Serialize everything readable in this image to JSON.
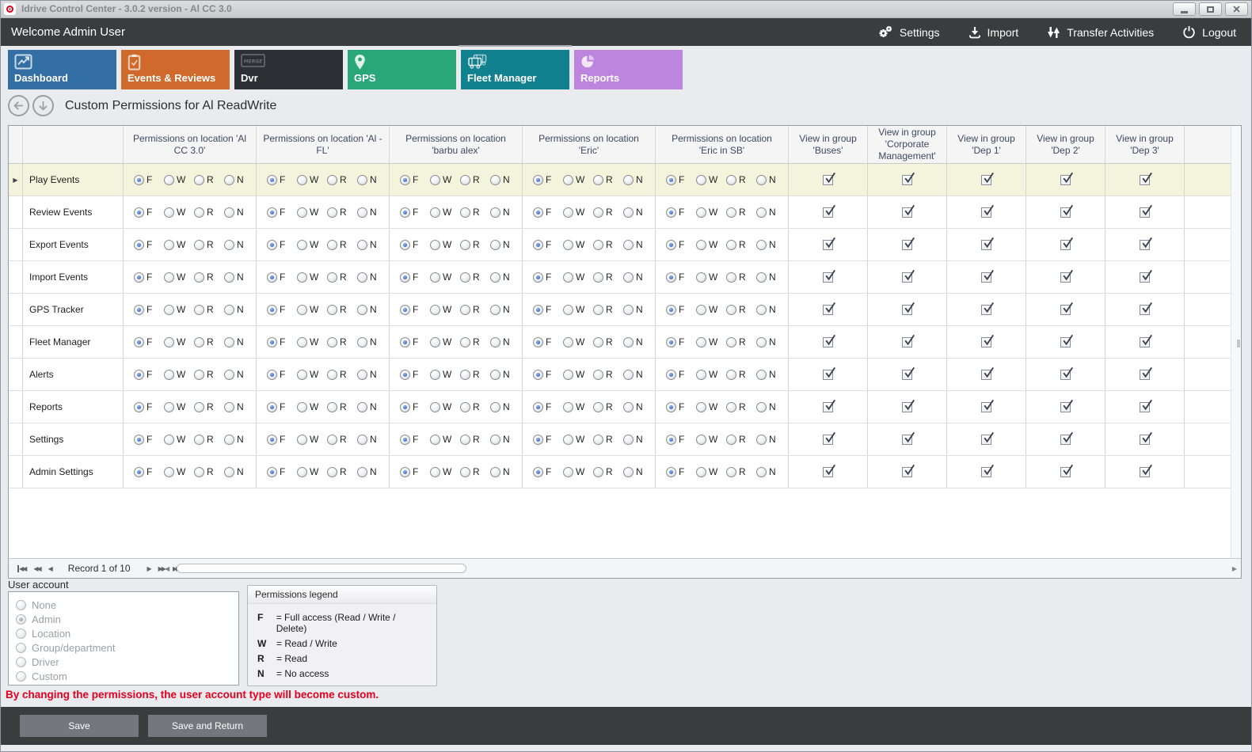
{
  "window": {
    "title": "Idrive Control Center - 3.0.2 version - Al CC 3.0"
  },
  "topbar": {
    "welcome": "Welcome Admin User",
    "actions": [
      {
        "label": "Settings",
        "icon": "gears-icon"
      },
      {
        "label": "Import",
        "icon": "import-icon"
      },
      {
        "label": "Transfer Activities",
        "icon": "transfer-icon"
      },
      {
        "label": "Logout",
        "icon": "power-icon"
      }
    ]
  },
  "tabs": [
    {
      "label": "Dashboard",
      "color": "#336fa4",
      "icon": "chart-icon",
      "selected": false
    },
    {
      "label": "Events & Reviews",
      "color": "#cf6a2c",
      "icon": "clipboard-icon",
      "selected": false
    },
    {
      "label": "Dvr",
      "color": "#2c3034",
      "icon": "merge-icon",
      "selected": false
    },
    {
      "label": "GPS",
      "color": "#2aa778",
      "icon": "pin-icon",
      "selected": false
    },
    {
      "label": "Fleet Manager",
      "color": "#11808f",
      "icon": "fleet-icon",
      "selected": true
    },
    {
      "label": "Reports",
      "color": "#bd85dd",
      "icon": "pie-icon",
      "selected": false
    }
  ],
  "breadcrumb": {
    "title": "Custom Permissions for Al ReadWrite"
  },
  "grid": {
    "location_columns": [
      "Permissions on location 'Al CC 3.0'",
      "Permissions on location 'Al - FL'",
      "Permissions on location 'barbu alex'",
      "Permissions on location 'Eric'",
      "Permissions on location 'Eric in SB'"
    ],
    "group_columns": [
      "View in group 'Buses'",
      "View in group 'Corporate Management'",
      "View in group 'Dep 1'",
      "View in group 'Dep 2'",
      "View in group 'Dep 3'"
    ],
    "permission_options": [
      "F",
      "W",
      "R",
      "N"
    ],
    "rows": [
      {
        "label": "Play Events",
        "selected": true,
        "permissions": [
          "F",
          "F",
          "F",
          "F",
          "F"
        ],
        "groups": [
          true,
          true,
          true,
          true,
          true
        ]
      },
      {
        "label": "Review Events",
        "selected": false,
        "permissions": [
          "F",
          "F",
          "F",
          "F",
          "F"
        ],
        "groups": [
          true,
          true,
          true,
          true,
          true
        ]
      },
      {
        "label": "Export Events",
        "selected": false,
        "permissions": [
          "F",
          "F",
          "F",
          "F",
          "F"
        ],
        "groups": [
          true,
          true,
          true,
          true,
          true
        ]
      },
      {
        "label": "Import Events",
        "selected": false,
        "permissions": [
          "F",
          "F",
          "F",
          "F",
          "F"
        ],
        "groups": [
          true,
          true,
          true,
          true,
          true
        ]
      },
      {
        "label": "GPS Tracker",
        "selected": false,
        "permissions": [
          "F",
          "F",
          "F",
          "F",
          "F"
        ],
        "groups": [
          true,
          true,
          true,
          true,
          true
        ]
      },
      {
        "label": "Fleet Manager",
        "selected": false,
        "permissions": [
          "F",
          "F",
          "F",
          "F",
          "F"
        ],
        "groups": [
          true,
          true,
          true,
          true,
          true
        ]
      },
      {
        "label": "Alerts",
        "selected": false,
        "permissions": [
          "F",
          "F",
          "F",
          "F",
          "F"
        ],
        "groups": [
          true,
          true,
          true,
          true,
          true
        ]
      },
      {
        "label": "Reports",
        "selected": false,
        "permissions": [
          "F",
          "F",
          "F",
          "F",
          "F"
        ],
        "groups": [
          true,
          true,
          true,
          true,
          true
        ]
      },
      {
        "label": "Settings",
        "selected": false,
        "permissions": [
          "F",
          "F",
          "F",
          "F",
          "F"
        ],
        "groups": [
          true,
          true,
          true,
          true,
          true
        ]
      },
      {
        "label": "Admin Settings",
        "selected": false,
        "permissions": [
          "F",
          "F",
          "F",
          "F",
          "F"
        ],
        "groups": [
          true,
          true,
          true,
          true,
          true
        ]
      }
    ]
  },
  "navigator": {
    "record_text": "Record 1 of 10"
  },
  "user_account": {
    "label": "User account",
    "options": [
      "None",
      "Admin",
      "Location",
      "Group/department",
      "Driver",
      "Custom"
    ],
    "selected": "Admin"
  },
  "legend": {
    "title": "Permissions legend",
    "entries": [
      {
        "key": "F",
        "desc": "= Full access (Read / Write / Delete)"
      },
      {
        "key": "W",
        "desc": "= Read / Write"
      },
      {
        "key": "R",
        "desc": "= Read"
      },
      {
        "key": "N",
        "desc": "= No access"
      }
    ]
  },
  "warning": "By changing the permissions, the user account type will become custom.",
  "footer": {
    "buttons": [
      "Save",
      "Save and Return"
    ]
  },
  "colors": {
    "topbar": "#3a3c3e",
    "selected_row": "#f4f4dc",
    "radio_accent": "#2d56b8",
    "warning_red": "#e4001e"
  }
}
